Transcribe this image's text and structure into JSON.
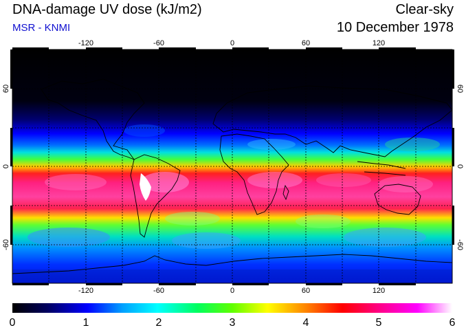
{
  "header": {
    "title": "DNA-damage UV dose (kJ/m2)",
    "subtitle": "MSR - KNMI",
    "condition": "Clear-sky",
    "date": "10 December 1978"
  },
  "axes": {
    "lon_ticks": [
      "-120",
      "-60",
      "0",
      "60",
      "120"
    ],
    "lat_ticks": [
      "60",
      "0",
      "-60"
    ]
  },
  "colorbar": {
    "labels": [
      "0",
      "1",
      "2",
      "3",
      "4",
      "5",
      "6"
    ],
    "colors": [
      "#000000",
      "#000060",
      "#0000ff",
      "#00a0ff",
      "#00ffff",
      "#00ff60",
      "#60ff00",
      "#ffff00",
      "#ff8000",
      "#ff0000",
      "#ff0080",
      "#ff00ff",
      "#ffffff"
    ]
  }
}
